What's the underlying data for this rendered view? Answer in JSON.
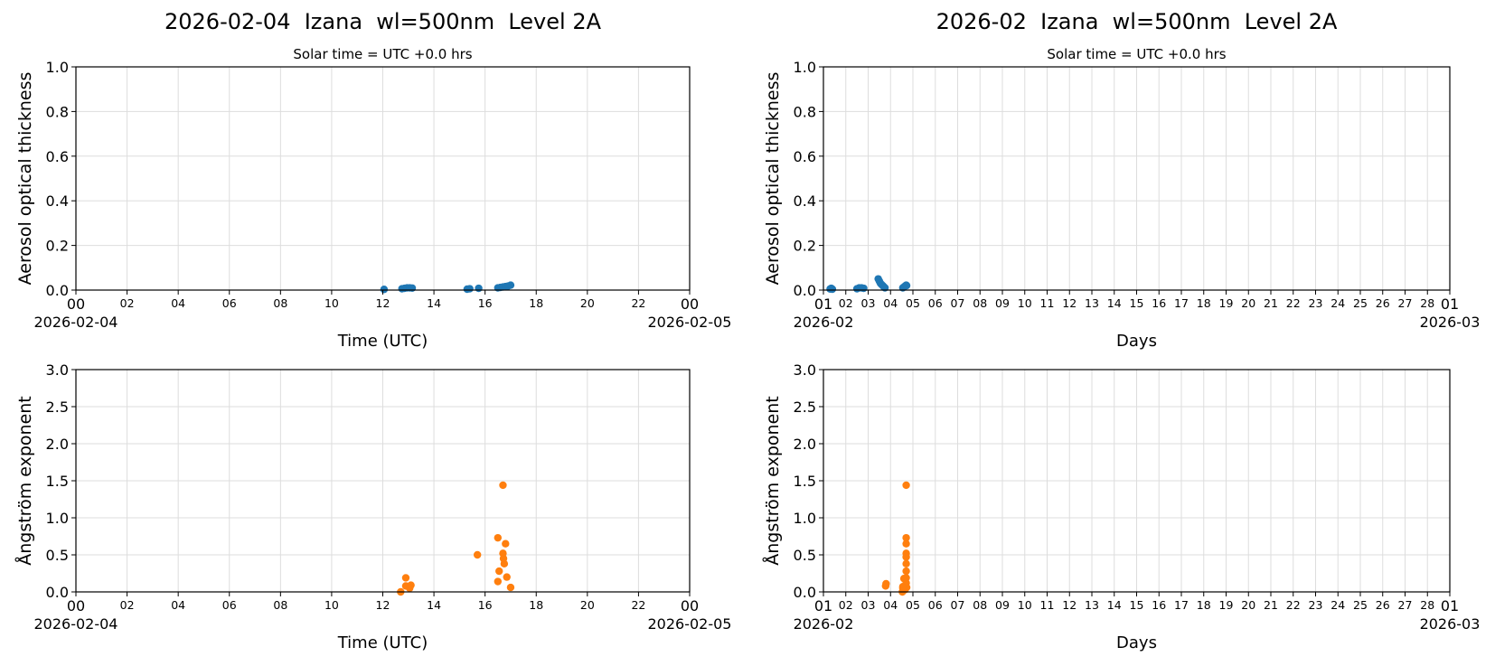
{
  "figure": {
    "left_title": "2026-02-04  Izana  wl=500nm  Level 2A",
    "right_title": "2026-02  Izana  wl=500nm  Level 2A",
    "left_subtitle": "Solar time = UTC +0.0 hrs",
    "right_subtitle": "Solar time = UTC +0.0 hrs"
  },
  "colors": {
    "aod": "#1f77b4",
    "angstrom": "#ff7f0e",
    "grid": "#dddddd",
    "axis": "#000000"
  },
  "chart_data": [
    {
      "id": "daily-aod",
      "type": "scatter",
      "title": "2026-02-04  Izana  wl=500nm  Level 2A",
      "subtitle": "Solar time = UTC +0.0 hrs",
      "xlabel": "Time (UTC)",
      "ylabel": "Aerosol optical thickness",
      "xlim": [
        0,
        24
      ],
      "ylim": [
        0,
        1.0
      ],
      "xticks": [
        "00",
        "02",
        "04",
        "06",
        "08",
        "10",
        "12",
        "14",
        "16",
        "18",
        "20",
        "22",
        "00"
      ],
      "xtick_dates": [
        "2026-02-04",
        "2026-02-05"
      ],
      "yticks": [
        "0.0",
        "0.2",
        "0.4",
        "0.6",
        "0.8",
        "1.0"
      ],
      "grid": true,
      "color": "#1f77b4",
      "x": [
        12.05,
        12.75,
        12.85,
        12.95,
        13.05,
        13.15,
        15.3,
        15.4,
        15.75,
        16.5,
        16.6,
        16.7,
        16.8,
        16.9,
        17.0
      ],
      "y": [
        0.003,
        0.006,
        0.008,
        0.01,
        0.01,
        0.009,
        0.004,
        0.006,
        0.008,
        0.01,
        0.012,
        0.014,
        0.016,
        0.018,
        0.022
      ]
    },
    {
      "id": "monthly-aod",
      "type": "scatter",
      "title": "2026-02  Izana  wl=500nm  Level 2A",
      "subtitle": "Solar time = UTC +0.0 hrs",
      "xlabel": "Days",
      "ylabel": "Aerosol optical thickness",
      "xlim": [
        1,
        29
      ],
      "ylim": [
        0,
        1.0
      ],
      "xticks": [
        "01",
        "02",
        "03",
        "04",
        "05",
        "06",
        "07",
        "08",
        "09",
        "10",
        "11",
        "12",
        "13",
        "14",
        "15",
        "16",
        "17",
        "18",
        "19",
        "20",
        "21",
        "22",
        "23",
        "24",
        "25",
        "26",
        "27",
        "28",
        "01"
      ],
      "xtick_dates": [
        "2026-02",
        "2026-03"
      ],
      "yticks": [
        "0.0",
        "0.2",
        "0.4",
        "0.6",
        "0.8",
        "1.0"
      ],
      "grid": true,
      "color": "#1f77b4",
      "x": [
        1.3,
        1.35,
        1.4,
        2.5,
        2.6,
        2.7,
        2.8,
        3.45,
        3.5,
        3.55,
        3.6,
        3.65,
        3.7,
        3.75,
        4.55,
        4.6,
        4.65,
        4.7,
        4.72
      ],
      "y": [
        0.005,
        0.008,
        0.004,
        0.006,
        0.01,
        0.01,
        0.008,
        0.05,
        0.04,
        0.03,
        0.025,
        0.02,
        0.015,
        0.01,
        0.01,
        0.014,
        0.018,
        0.022,
        0.02
      ]
    },
    {
      "id": "daily-angstrom",
      "type": "scatter",
      "xlabel": "Time (UTC)",
      "ylabel": "Ångström exponent",
      "xlim": [
        0,
        24
      ],
      "ylim": [
        0,
        3.0
      ],
      "xticks": [
        "00",
        "02",
        "04",
        "06",
        "08",
        "10",
        "12",
        "14",
        "16",
        "18",
        "20",
        "22",
        "00"
      ],
      "xtick_dates": [
        "2026-02-04",
        "2026-02-05"
      ],
      "yticks": [
        "0.0",
        "0.5",
        "1.0",
        "1.5",
        "2.0",
        "2.5",
        "3.0"
      ],
      "grid": true,
      "color": "#ff7f0e",
      "x": [
        12.7,
        12.9,
        12.9,
        13.05,
        13.1,
        15.7,
        16.5,
        16.55,
        16.5,
        16.7,
        16.7,
        16.72,
        16.75,
        16.8,
        16.85,
        17.0
      ],
      "y": [
        0.0,
        0.08,
        0.19,
        0.05,
        0.09,
        0.5,
        0.73,
        0.28,
        0.14,
        1.44,
        0.52,
        0.45,
        0.38,
        0.65,
        0.2,
        0.06
      ]
    },
    {
      "id": "monthly-angstrom",
      "type": "scatter",
      "xlabel": "Days",
      "ylabel": "Ångström exponent",
      "xlim": [
        1,
        29
      ],
      "ylim": [
        0,
        3.0
      ],
      "xticks": [
        "01",
        "02",
        "03",
        "04",
        "05",
        "06",
        "07",
        "08",
        "09",
        "10",
        "11",
        "12",
        "13",
        "14",
        "15",
        "16",
        "17",
        "18",
        "19",
        "20",
        "21",
        "22",
        "23",
        "24",
        "25",
        "26",
        "27",
        "28",
        "01"
      ],
      "xtick_dates": [
        "2026-02",
        "2026-03"
      ],
      "yticks": [
        "0.0",
        "0.5",
        "1.0",
        "1.5",
        "2.0",
        "2.5",
        "3.0"
      ],
      "grid": true,
      "color": "#ff7f0e",
      "x": [
        3.78,
        3.8,
        4.53,
        4.55,
        4.6,
        4.65,
        4.7,
        4.7,
        4.7,
        4.7,
        4.7,
        4.7,
        4.7,
        4.7,
        4.7,
        4.72,
        4.55
      ],
      "y": [
        0.08,
        0.11,
        0.0,
        0.07,
        0.18,
        0.03,
        1.44,
        0.73,
        0.65,
        0.52,
        0.47,
        0.38,
        0.28,
        0.19,
        0.12,
        0.06,
        0.05
      ]
    }
  ]
}
